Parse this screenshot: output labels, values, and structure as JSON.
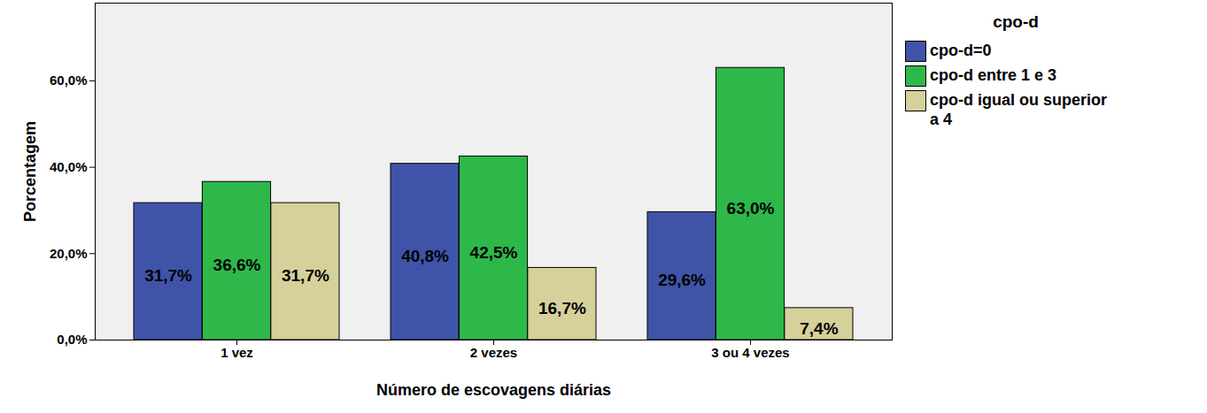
{
  "chart_data": {
    "type": "bar",
    "x_label": "Número de escovagens diárias",
    "y_label": "Porcentagem",
    "categories": [
      "1 vez",
      "2 vezes",
      "3 ou 4 vezes"
    ],
    "series": [
      {
        "name": "cpo-d=0",
        "color": "#3f54a8",
        "values": [
          31.7,
          40.8,
          29.6
        ],
        "value_labels": [
          "31,7%",
          "40,8%",
          "29,6%"
        ]
      },
      {
        "name": "cpo-d entre 1 e 3",
        "color": "#2eb84a",
        "values": [
          36.6,
          42.5,
          63.0
        ],
        "value_labels": [
          "36,6%",
          "42,5%",
          "63,0%"
        ]
      },
      {
        "name": "cpo-d igual ou superior a 4",
        "color": "#d6d09b",
        "values": [
          31.7,
          16.7,
          7.4
        ],
        "value_labels": [
          "31,7%",
          "16,7%",
          "7,4%"
        ]
      }
    ],
    "ylim": [
      0,
      78
    ],
    "yticks": [
      {
        "value": 0,
        "label": "0,0%"
      },
      {
        "value": 20,
        "label": "20,0%"
      },
      {
        "value": 40,
        "label": "40,0%"
      },
      {
        "value": 60,
        "label": "60,0%"
      }
    ],
    "legend": "right",
    "legend_title": "cpo-d",
    "data_labels": true,
    "grid": false
  }
}
